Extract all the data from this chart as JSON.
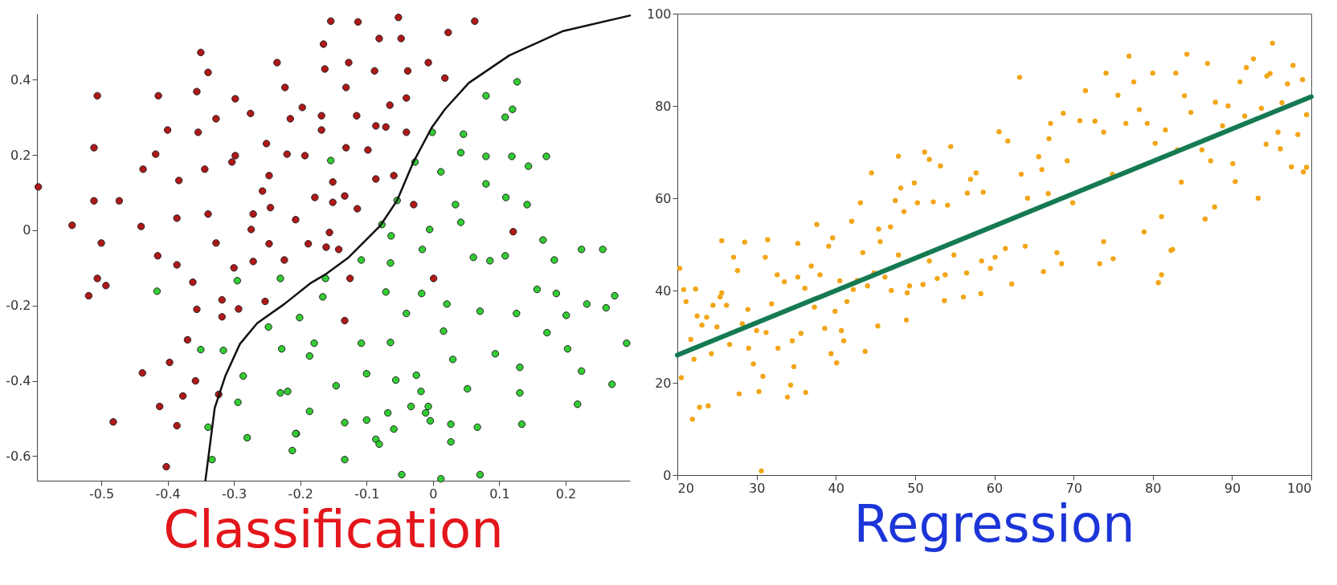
{
  "chart_data": [
    {
      "type": "scatter",
      "title": "Classification",
      "xlim": [
        -0.597,
        0.297
      ],
      "ylim": [
        -0.665,
        0.575
      ],
      "xticks": [
        -0.5,
        -0.4,
        -0.3,
        -0.2,
        -0.1,
        0,
        0.1,
        0.2
      ],
      "yticks": [
        -0.6,
        -0.4,
        -0.2,
        0,
        0.2,
        0.4
      ],
      "grid": false,
      "series": [
        {
          "marker": "circle",
          "color": "#b01818",
          "x": [
            -0.595,
            -0.506,
            -0.511,
            -0.511,
            -0.473,
            -0.544,
            -0.5,
            -0.414,
            -0.418,
            -0.437,
            -0.4,
            -0.383,
            -0.44,
            -0.386,
            -0.415,
            -0.35,
            -0.339,
            -0.356,
            -0.354,
            -0.327,
            -0.344,
            -0.339,
            -0.327,
            -0.298,
            -0.275,
            -0.298,
            -0.303,
            -0.251,
            -0.247,
            -0.257,
            -0.245,
            -0.271,
            -0.274,
            -0.247,
            -0.235,
            -0.223,
            -0.197,
            -0.215,
            -0.22,
            -0.193,
            -0.178,
            -0.207,
            -0.188,
            -0.168,
            -0.168,
            -0.165,
            -0.163,
            -0.224,
            -0.271,
            -0.154,
            -0.113,
            -0.052,
            0.063,
            0.023,
            -0.081,
            -0.048,
            -0.127,
            -0.007,
            -0.088,
            -0.038,
            0.018,
            -0.131,
            -0.04,
            -0.065,
            -0.115,
            -0.086,
            -0.071,
            -0.04,
            -0.131,
            -0.098,
            -0.151,
            -0.086,
            -0.059,
            -0.151,
            -0.133,
            -0.114,
            -0.029,
            -0.156,
            0.121,
            -0.161,
            -0.142,
            -0.125,
            0.001,
            -0.133,
            -0.386,
            -0.3,
            -0.506,
            -0.493,
            -0.519,
            -0.362,
            -0.318,
            -0.356,
            -0.293,
            -0.318,
            -0.253,
            -0.37,
            -0.397,
            -0.438,
            -0.358,
            -0.377,
            -0.323,
            -0.412,
            -0.482,
            -0.386,
            -0.402
          ],
          "values": [
            0.115,
            0.357,
            0.219,
            0.078,
            0.078,
            0.013,
            -0.034,
            0.357,
            0.202,
            0.162,
            0.266,
            0.132,
            0.01,
            0.032,
            -0.068,
            0.472,
            0.419,
            0.368,
            0.26,
            0.296,
            0.162,
            0.043,
            -0.034,
            0.349,
            0.31,
            0.198,
            0.181,
            0.23,
            0.145,
            0.104,
            0.06,
            0.043,
            0.002,
            -0.036,
            0.445,
            0.379,
            0.326,
            0.296,
            0.202,
            0.198,
            0.087,
            0.028,
            -0.036,
            0.304,
            0.266,
            0.494,
            0.428,
            -0.079,
            -0.083,
            0.555,
            0.553,
            0.565,
            0.555,
            0.525,
            0.509,
            0.509,
            0.445,
            0.445,
            0.423,
            0.423,
            0.404,
            0.379,
            0.351,
            0.332,
            0.304,
            0.277,
            0.274,
            0.26,
            0.219,
            0.213,
            0.128,
            0.136,
            0.145,
            0.074,
            0.091,
            0.057,
            0.068,
            -0.006,
            -0.004,
            -0.045,
            -0.051,
            -0.128,
            -0.128,
            -0.24,
            -0.092,
            -0.1,
            -0.128,
            -0.147,
            -0.174,
            -0.138,
            -0.185,
            -0.21,
            -0.209,
            -0.23,
            -0.189,
            -0.291,
            -0.351,
            -0.379,
            -0.4,
            -0.44,
            -0.436,
            -0.468,
            -0.509,
            -0.519,
            -0.628
          ]
        },
        {
          "marker": "circle",
          "color": "#33cc33",
          "x": [
            0.127,
            0.08,
            0.12,
            0.109,
            -0.001,
            0.046,
            0.042,
            0.08,
            0.119,
            0.171,
            0.144,
            -0.154,
            -0.027,
            0.012,
            0.08,
            0.11,
            0.142,
            0.034,
            -0.054,
            0.042,
            -0.077,
            -0.005,
            -0.063,
            0.166,
            0.224,
            0.256,
            -0.016,
            0.061,
            0.086,
            0.109,
            0.183,
            -0.108,
            -0.064,
            -0.162,
            -0.166,
            -0.071,
            -0.017,
            0.021,
            0.071,
            0.126,
            0.157,
            0.186,
            0.232,
            0.274,
            0.261,
            0.201,
            -0.201,
            -0.04,
            0.016,
            0.172,
            0.292,
            0.203,
            -0.179,
            -0.186,
            -0.108,
            -0.064,
            0.094,
            0.03,
            0.131,
            0.224,
            -0.1,
            -0.056,
            -0.025,
            -0.146,
            -0.018,
            0.052,
            0.131,
            0.27,
            0.218,
            -0.186,
            -0.033,
            -0.007,
            -0.068,
            -0.011,
            -0.004,
            -0.133,
            -0.1,
            0.027,
            0.067,
            0.134,
            -0.059,
            -0.206,
            -0.086,
            -0.081,
            0.027,
            -0.133,
            -0.047,
            0.071,
            0.012,
            -0.416,
            -0.295,
            -0.23,
            -0.248,
            -0.35,
            -0.316,
            -0.228,
            -0.286,
            -0.23,
            -0.219,
            -0.294,
            -0.339,
            -0.28,
            -0.207,
            -0.212,
            -0.333
          ],
          "values": [
            0.394,
            0.357,
            0.321,
            0.3,
            0.26,
            0.255,
            0.206,
            0.196,
            0.196,
            0.196,
            0.17,
            0.185,
            0.181,
            0.155,
            0.123,
            0.087,
            0.068,
            0.068,
            0.079,
            0.021,
            0.015,
            0.002,
            -0.015,
            -0.026,
            -0.051,
            -0.051,
            -0.051,
            -0.072,
            -0.081,
            -0.068,
            -0.079,
            -0.079,
            -0.087,
            -0.128,
            -0.177,
            -0.164,
            -0.168,
            -0.196,
            -0.215,
            -0.221,
            -0.157,
            -0.168,
            -0.196,
            -0.174,
            -0.206,
            -0.226,
            -0.232,
            -0.221,
            -0.268,
            -0.272,
            -0.3,
            -0.315,
            -0.3,
            -0.334,
            -0.3,
            -0.298,
            -0.328,
            -0.343,
            -0.364,
            -0.374,
            -0.381,
            -0.398,
            -0.385,
            -0.413,
            -0.428,
            -0.421,
            -0.432,
            -0.409,
            -0.462,
            -0.481,
            -0.468,
            -0.468,
            -0.485,
            -0.485,
            -0.506,
            -0.511,
            -0.504,
            -0.515,
            -0.523,
            -0.515,
            -0.528,
            -0.54,
            -0.555,
            -0.568,
            -0.562,
            -0.609,
            -0.649,
            -0.649,
            -0.66,
            -0.162,
            -0.134,
            -0.128,
            -0.257,
            -0.317,
            -0.319,
            -0.315,
            -0.387,
            -0.432,
            -0.428,
            -0.457,
            -0.523,
            -0.551,
            -0.54,
            -0.585,
            -0.609
          ]
        },
        {
          "type": "line",
          "color": "#111111",
          "x": [
            -0.343,
            -0.329,
            -0.313,
            -0.291,
            -0.265,
            -0.224,
            -0.184,
            -0.16,
            -0.127,
            -0.079,
            -0.054,
            -0.03,
            -0.002,
            0.018,
            0.054,
            0.115,
            0.195,
            0.297
          ],
          "values": [
            -0.664,
            -0.472,
            -0.387,
            -0.302,
            -0.247,
            -0.196,
            -0.14,
            -0.115,
            -0.072,
            0.013,
            0.079,
            0.179,
            0.272,
            0.321,
            0.391,
            0.464,
            0.528,
            0.57
          ]
        }
      ]
    },
    {
      "type": "scatter",
      "title": "Regression",
      "xlim": [
        20,
        100
      ],
      "ylim": [
        0,
        100
      ],
      "xticks": [
        20,
        30,
        40,
        50,
        60,
        70,
        80,
        90,
        100
      ],
      "yticks": [
        0,
        20,
        40,
        60,
        80,
        100
      ],
      "grid": false,
      "series": [
        {
          "marker": "circle",
          "color": "#f2a516",
          "x": [
            25.6,
            28.5,
            31.4,
            35.2,
            37.6,
            39.6,
            42,
            43.1,
            44.5,
            45.4,
            46.9,
            47.5,
            47.9,
            48.2,
            48.6,
            49.9,
            50.3,
            51.2,
            51.8,
            52.3,
            53.2,
            54.1,
            54.5,
            56.6,
            57,
            57.7,
            58.6,
            60.6,
            61.7,
            63.2,
            63.4,
            64.2,
            65.6,
            66,
            66.9,
            66.8,
            67.1,
            68.7,
            69.2,
            69.9,
            70.8,
            71.5,
            72.7,
            73.8,
            74.1,
            74.9,
            75.6,
            76.6,
            77,
            77.6,
            78.3,
            78.9,
            79.3,
            80,
            80.3,
            81.1,
            81.6,
            82.5,
            82.9,
            83.1,
            83.6,
            84,
            84.3,
            84.8,
            86.2,
            86.6,
            86.9,
            87.3,
            87.8,
            87.9,
            88.8,
            89.5,
            90.1,
            90.4,
            91,
            91.6,
            91.8,
            92.7,
            93.3,
            93.7,
            94.3,
            94.4,
            94.8,
            95.1,
            95.8,
            96.1,
            96.3,
            97,
            97.5,
            97.7,
            98.3,
            98.9,
            99,
            99.4,
            99.4,
            20.3,
            20.8,
            20.5,
            21.1,
            21.7,
            21.9,
            22.1,
            22.3,
            22.5,
            22.8,
            23.1,
            23.7,
            23.9,
            24.3,
            24.5,
            25,
            25.4,
            25.6,
            26.2,
            26.6,
            27.1,
            27.6,
            27.8,
            28.2,
            28.9,
            29,
            29.6,
            30,
            30.3,
            30.6,
            30.8,
            31.2,
            31.1,
            31.9,
            32.6,
            32.7,
            33.5,
            33.9,
            34.3,
            34.5,
            34.7,
            35.2,
            35.6,
            36.1,
            36.2,
            36.9,
            37.3,
            38,
            38.6,
            39.1,
            39.4,
            39.9,
            40.1,
            40.5,
            40.7,
            41,
            41.4,
            42.2,
            42.7,
            43.4,
            43.7,
            44,
            44.8,
            45.3,
            45.6,
            46.2,
            47,
            47.9,
            49,
            48.9,
            49.3,
            51,
            51.8,
            52.8,
            53.8,
            53.7,
            54.9,
            56.1,
            56.5,
            58.4,
            58.3,
            59.5,
            60.1,
            61.4,
            62.2,
            63.9,
            66.2,
            67.9,
            68.5,
            73.3,
            73.8,
            75,
            80.7,
            81.1,
            82.3
          ],
          "values": [
            50.8,
            50.5,
            51,
            50.2,
            54.3,
            51.4,
            55,
            59,
            65.5,
            53.3,
            53.8,
            59.5,
            69.1,
            62.2,
            57.1,
            63.3,
            59,
            70,
            68.4,
            59.2,
            67,
            58.5,
            71.2,
            61.1,
            64.1,
            65.5,
            61.3,
            74.4,
            72.4,
            86.2,
            65.2,
            60,
            69,
            66.2,
            72.9,
            61,
            76.2,
            78.4,
            68.1,
            59,
            76.8,
            83.3,
            76.7,
            74.3,
            87.1,
            65.2,
            82.3,
            76.2,
            90.8,
            85.2,
            79.2,
            52.7,
            76.2,
            87.1,
            71.9,
            56,
            74.8,
            48.9,
            87.1,
            70.5,
            63.5,
            82.2,
            91.2,
            78.6,
            70.5,
            55.5,
            89.2,
            68.1,
            58.1,
            80.8,
            75.7,
            80,
            67.5,
            63.6,
            85.2,
            77.8,
            88.3,
            90.2,
            60,
            79.5,
            71.7,
            86.5,
            87,
            93.6,
            74.3,
            70.7,
            80.7,
            84.8,
            66.8,
            88.8,
            73.8,
            85.7,
            65.7,
            78.1,
            66.7,
            44.8,
            40.2,
            21.1,
            37.6,
            29.4,
            12.1,
            25.1,
            40.3,
            34.5,
            14.7,
            32.5,
            34.2,
            15,
            26.3,
            36.8,
            32.1,
            38.6,
            39.5,
            36.8,
            28.3,
            47.2,
            44.3,
            17.6,
            32.8,
            35.9,
            27.5,
            24.1,
            31.3,
            18.1,
            0.9,
            21.4,
            30.9,
            47.2,
            37.1,
            43.4,
            27.5,
            41.9,
            16.9,
            19.5,
            29.1,
            23.5,
            42.9,
            30.7,
            40.5,
            17.9,
            45.3,
            36.4,
            43.4,
            31.8,
            49.6,
            26.3,
            35.5,
            24.3,
            42.1,
            31.3,
            29.1,
            37.6,
            40.2,
            42.2,
            48.2,
            26.8,
            41,
            43.8,
            32.3,
            50.6,
            42.9,
            40,
            47.7,
            39.5,
            33.6,
            41,
            41.3,
            46.4,
            42.6,
            43.4,
            37.8,
            47.7,
            38.6,
            43.8,
            46.4,
            39.3,
            44.8,
            47.2,
            49.1,
            41.4,
            49.6,
            44.1,
            48.2,
            45.8,
            45.8,
            50.6,
            46.9,
            41.7,
            43.4,
            48.7
          ]
        },
        {
          "type": "line",
          "color": "#147a52",
          "x": [
            20,
            100
          ],
          "values": [
            26,
            82
          ]
        }
      ]
    }
  ]
}
